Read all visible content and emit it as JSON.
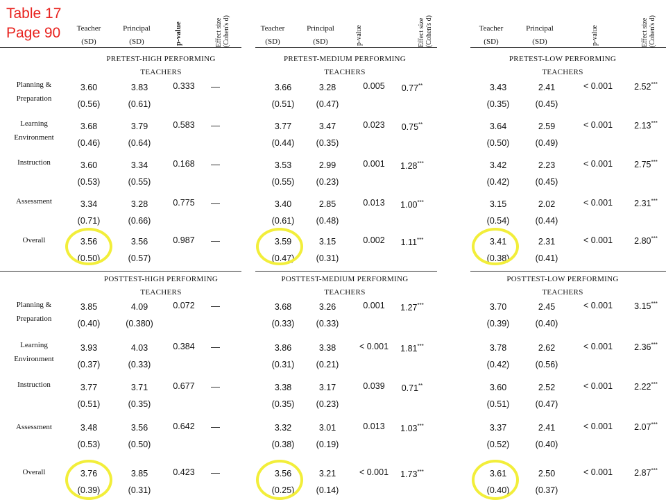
{
  "title": {
    "line1": "Table 17",
    "line2": "Page 90"
  },
  "header": {
    "teacher": "Teacher",
    "principal": "Principal",
    "sd": "(SD)",
    "pvalue": "p-value",
    "effect_line1": "Effect size",
    "effect_line2": "(Cohen's d)"
  },
  "row_labels": [
    [
      "Planning &",
      "Preparation"
    ],
    [
      "Learning",
      "Environment"
    ],
    [
      "Instruction"
    ],
    [
      "Assessment"
    ],
    [
      "Overall"
    ]
  ],
  "pretest": {
    "sections": [
      {
        "line1": "PRETEST-HIGH PERFORMING",
        "line2": "TEACHERS"
      },
      {
        "line1": "PRETEST-MEDIUM PERFORMING",
        "line2": "TEACHERS"
      },
      {
        "line1": "PRETEST-LOW PERFORMING",
        "line2": "TEACHERS"
      }
    ],
    "groups": [
      {
        "rows": [
          {
            "t": "3.60",
            "tsd": "(0.56)",
            "p": "3.83",
            "psd": "(0.61)",
            "pv": "0.333",
            "d": "",
            "stars": "",
            "dash": "—"
          },
          {
            "t": "3.68",
            "tsd": "(0.46)",
            "p": "3.79",
            "psd": "(0.64)",
            "pv": "0.583",
            "d": "",
            "stars": "",
            "dash": "—"
          },
          {
            "t": "3.60",
            "tsd": "(0.53)",
            "p": "3.34",
            "psd": "(0.55)",
            "pv": "0.168",
            "d": "",
            "stars": "",
            "dash": "—"
          },
          {
            "t": "3.34",
            "tsd": "(0.71)",
            "p": "3.28",
            "psd": "(0.66)",
            "pv": "0.775",
            "d": "",
            "stars": "",
            "dash": "—"
          },
          {
            "t": "3.56",
            "tsd": "(0.50)",
            "p": "3.56",
            "psd": "(0.57)",
            "pv": "0.987",
            "d": "",
            "stars": "",
            "dash": "—"
          }
        ]
      },
      {
        "rows": [
          {
            "t": "3.66",
            "tsd": "(0.51)",
            "p": "3.28",
            "psd": "(0.47)",
            "pv": "0.005",
            "d": "0.77",
            "stars": "**"
          },
          {
            "t": "3.77",
            "tsd": "(0.44)",
            "p": "3.47",
            "psd": "(0.35)",
            "pv": "0.023",
            "d": "0.75",
            "stars": "**"
          },
          {
            "t": "3.53",
            "tsd": "(0.55)",
            "p": "2.99",
            "psd": "(0.23)",
            "pv": "0.001",
            "d": "1.28",
            "stars": "***"
          },
          {
            "t": "3.40",
            "tsd": "(0.61)",
            "p": "2.85",
            "psd": "(0.48)",
            "pv": "0.013",
            "d": "1.00",
            "stars": "***"
          },
          {
            "t": "3.59",
            "tsd": "(0.47)",
            "p": "3.15",
            "psd": "(0.31)",
            "pv": "0.002",
            "d": "1.11",
            "stars": "***"
          }
        ]
      },
      {
        "rows": [
          {
            "t": "3.43",
            "tsd": "(0.35)",
            "p": "2.41",
            "psd": "(0.45)",
            "pv": "< 0.001",
            "d": "2.52",
            "stars": "***"
          },
          {
            "t": "3.64",
            "tsd": "(0.50)",
            "p": "2.59",
            "psd": "(0.49)",
            "pv": "< 0.001",
            "d": "2.13",
            "stars": "***"
          },
          {
            "t": "3.42",
            "tsd": "(0.42)",
            "p": "2.23",
            "psd": "(0.45)",
            "pv": "< 0.001",
            "d": "2.75",
            "stars": "***"
          },
          {
            "t": "3.15",
            "tsd": "(0.54)",
            "p": "2.02",
            "psd": "(0.44)",
            "pv": "< 0.001",
            "d": "2.31",
            "stars": "***"
          },
          {
            "t": "3.41",
            "tsd": "(0.38)",
            "p": "2.31",
            "psd": "(0.41)",
            "pv": "< 0.001",
            "d": "2.80",
            "stars": "***"
          }
        ]
      }
    ]
  },
  "posttest": {
    "sections": [
      {
        "line1": "POSTTEST-HIGH PERFORMING",
        "line2": "TEACHERS"
      },
      {
        "line1": "POSTTEST-MEDIUM PERFORMING",
        "line2": "TEACHERS"
      },
      {
        "line1": "POSTTEST-LOW PERFORMING",
        "line2": "TEACHERS"
      }
    ],
    "groups": [
      {
        "rows": [
          {
            "t": "3.85",
            "tsd": "(0.40)",
            "p": "4.09",
            "psd": "(0.380)",
            "pv": "0.072",
            "d": "",
            "stars": "",
            "dash": "—"
          },
          {
            "t": "3.93",
            "tsd": "(0.37)",
            "p": "4.03",
            "psd": "(0.33)",
            "pv": "0.384",
            "d": "",
            "stars": "",
            "dash": "—"
          },
          {
            "t": "3.77",
            "tsd": "(0.51)",
            "p": "3.71",
            "psd": "(0.35)",
            "pv": "0.677",
            "d": "",
            "stars": "",
            "dash": "—"
          },
          {
            "t": "3.48",
            "tsd": "(0.53)",
            "p": "3.56",
            "psd": "(0.50)",
            "pv": "0.642",
            "d": "",
            "stars": "",
            "dash": "—"
          },
          {
            "t": "3.76",
            "tsd": "(0.39)",
            "p": "3.85",
            "psd": "(0.31)",
            "pv": "0.423",
            "d": "",
            "stars": "",
            "dash": "—"
          }
        ]
      },
      {
        "rows": [
          {
            "t": "3.68",
            "tsd": "(0.33)",
            "p": "3.26",
            "psd": "(0.33)",
            "pv": "0.001",
            "d": "1.27",
            "stars": "***"
          },
          {
            "t": "3.86",
            "tsd": "(0.31)",
            "p": "3.38",
            "psd": "(0.21)",
            "pv": "< 0.001",
            "d": "1.81",
            "stars": "***"
          },
          {
            "t": "3.38",
            "tsd": "(0.35)",
            "p": "3.17",
            "psd": "(0.23)",
            "pv": "0.039",
            "d": "0.71",
            "stars": "**"
          },
          {
            "t": "3.32",
            "tsd": "(0.38)",
            "p": "3.01",
            "psd": "(0.19)",
            "pv": "0.013",
            "d": "1.03",
            "stars": "***"
          },
          {
            "t": "3.56",
            "tsd": "(0.25)",
            "p": "3.21",
            "psd": "(0.14)",
            "pv": "< 0.001",
            "d": "1.73",
            "stars": "***"
          }
        ]
      },
      {
        "rows": [
          {
            "t": "3.70",
            "tsd": "(0.39)",
            "p": "2.45",
            "psd": "(0.40)",
            "pv": "< 0.001",
            "d": "3.15",
            "stars": "***"
          },
          {
            "t": "3.78",
            "tsd": "(0.42)",
            "p": "2.62",
            "psd": "(0.56)",
            "pv": "< 0.001",
            "d": "2.36",
            "stars": "***"
          },
          {
            "t": "3.60",
            "tsd": "(0.51)",
            "p": "2.52",
            "psd": "(0.47)",
            "pv": "< 0.001",
            "d": "2.22",
            "stars": "***"
          },
          {
            "t": "3.37",
            "tsd": "(0.52)",
            "p": "2.41",
            "psd": "(0.40)",
            "pv": "< 0.001",
            "d": "2.07",
            "stars": "***"
          },
          {
            "t": "3.61",
            "tsd": "(0.40)",
            "p": "2.50",
            "psd": "(0.37)",
            "pv": "< 0.001",
            "d": "2.87",
            "stars": "***"
          }
        ]
      }
    ]
  },
  "colors": {
    "title": "#e8211d",
    "highlight": "#f2ee3a",
    "rule": "#333333"
  }
}
